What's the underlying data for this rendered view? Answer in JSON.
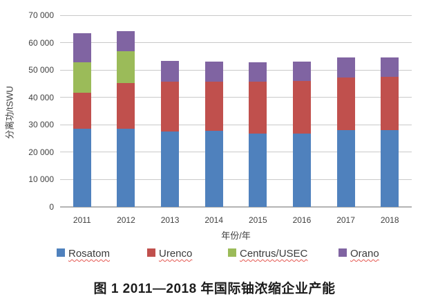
{
  "chart_data": {
    "type": "bar",
    "stacked": true,
    "title": "",
    "xlabel": "年份/年",
    "ylabel": "分离功/tSWU",
    "categories": [
      "2011",
      "2012",
      "2013",
      "2014",
      "2015",
      "2016",
      "2017",
      "2018"
    ],
    "series": [
      {
        "name": "Rosatom",
        "color": "#4F81BD",
        "values": [
          28500,
          28600,
          27500,
          27900,
          26800,
          26900,
          28000,
          28100
        ]
      },
      {
        "name": "Urenco",
        "color": "#C0504D",
        "values": [
          13300,
          16700,
          18200,
          17800,
          18900,
          19000,
          19300,
          19400
        ]
      },
      {
        "name": "Centrus/USEC",
        "color": "#9BBB59",
        "values": [
          11100,
          11600,
          0,
          0,
          0,
          0,
          0,
          0
        ]
      },
      {
        "name": "Orano",
        "color": "#8064A2",
        "values": [
          10600,
          7200,
          7600,
          7500,
          7000,
          7100,
          7400,
          7100
        ]
      }
    ],
    "ylim": [
      0,
      70000
    ],
    "ytick_step": 10000,
    "ytick_labels": [
      "0",
      "10 000",
      "20 000",
      "30 000",
      "40 000",
      "50 000",
      "60 000",
      "70 000"
    ],
    "grid": true,
    "legend_position": "bottom",
    "legend_entries": [
      "Rosatom",
      "Urenco",
      "Centrus/USEC",
      "Orano"
    ]
  },
  "caption": "图 1  2011—2018 年国际铀浓缩企业产能",
  "colors": {
    "gridline": "#c9c9c9",
    "axis_line": "#b3b3b3",
    "tick_text": "#3f3f3f",
    "legend_underline": "#e4564f",
    "background": "#ffffff"
  },
  "legend_x_positions": [
    82,
    213,
    330,
    490
  ]
}
